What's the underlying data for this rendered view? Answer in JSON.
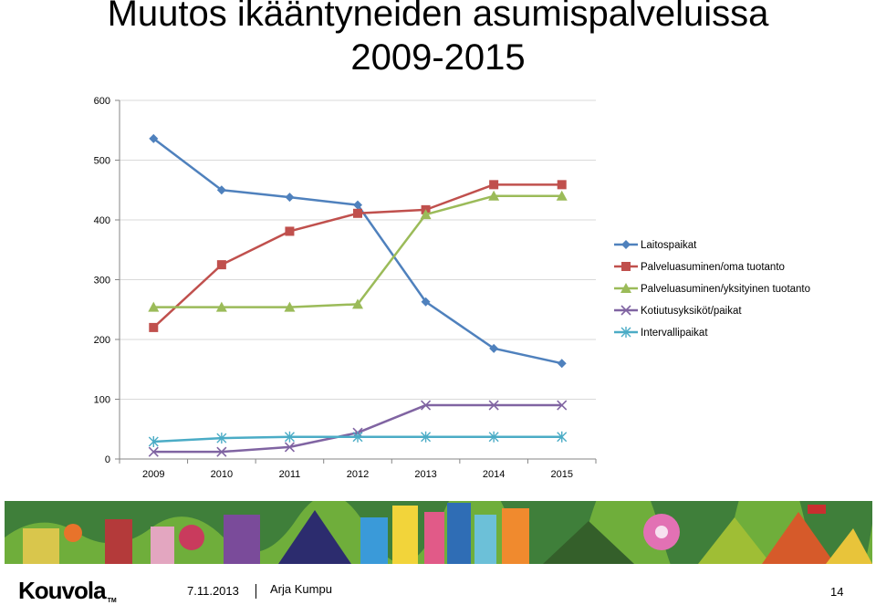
{
  "slide": {
    "title_line1": "Muutos ikääntyneiden asumispalveluissa",
    "title_line2": "2009-2015"
  },
  "chart_data": {
    "type": "line",
    "x": [
      "2009",
      "2010",
      "2011",
      "2012",
      "2013",
      "2014",
      "2015"
    ],
    "ylim": [
      0,
      600
    ],
    "yticks": [
      "0",
      "100",
      "200",
      "300",
      "400",
      "500",
      "600"
    ],
    "grid": true,
    "legend_position": "right",
    "series": [
      {
        "name": "Laitospaikat",
        "color": "#4F81BD",
        "marker": "diamond",
        "values": [
          536,
          450,
          438,
          425,
          263,
          185,
          160
        ]
      },
      {
        "name": "Palveluasuminen/oma tuotanto",
        "color": "#C0504D",
        "marker": "square",
        "values": [
          220,
          325,
          381,
          411,
          417,
          459,
          459
        ]
      },
      {
        "name": "Palveluasuminen/yksityinen tuotanto",
        "color": "#9BBB59",
        "marker": "triangle",
        "values": [
          254,
          254,
          254,
          259,
          409,
          440,
          440
        ]
      },
      {
        "name": "Kotiutusyksiköt/paikat",
        "color": "#8064A2",
        "marker": "x",
        "values": [
          12,
          12,
          20,
          44,
          90,
          90,
          90
        ]
      },
      {
        "name": "Intervallipaikat",
        "color": "#4BACC6",
        "marker": "asterisk",
        "values": [
          29,
          35,
          37,
          37,
          37,
          37,
          37
        ]
      }
    ]
  },
  "footer": {
    "logo_text": "Kouvola",
    "logo_tm": "TM",
    "date": "7.11.2013",
    "author": "Arja Kumpu",
    "page_number": "14"
  }
}
